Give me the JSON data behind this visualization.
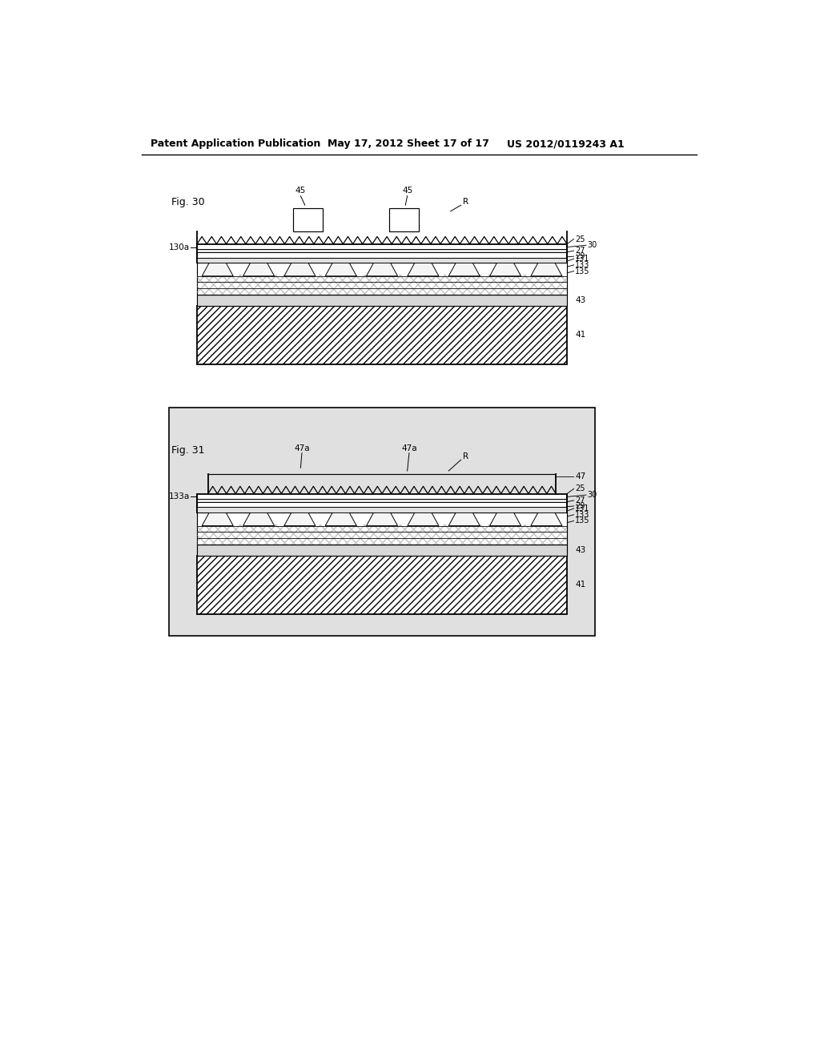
{
  "bg_color": "#ffffff",
  "header_text": "Patent Application Publication",
  "header_date": "May 17, 2012",
  "header_sheet": "Sheet 17 of 17",
  "header_patent": "US 2012/0119243 A1",
  "fig30_label": "Fig. 30",
  "fig31_label": "Fig. 31"
}
